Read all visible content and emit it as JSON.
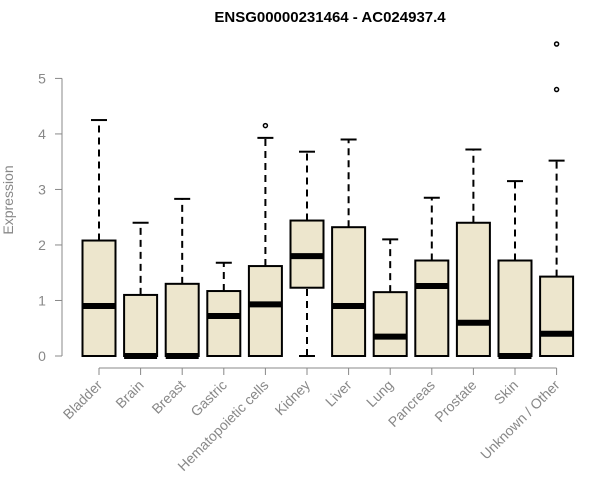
{
  "chart_data": {
    "type": "boxplot",
    "title": "ENSG00000231464 - AC024937.4",
    "xlabel": "",
    "ylabel": "Expression",
    "ylim": [
      0,
      5.8
    ],
    "yticks": [
      0,
      1,
      2,
      3,
      4,
      5
    ],
    "box_color": "#ede6cd",
    "axis_color": "#888888",
    "categories": [
      "Bladder",
      "Brain",
      "Breast",
      "Gastric",
      "Hematopoietic cells",
      "Kidney",
      "Liver",
      "Lung",
      "Pancreas",
      "Prostate",
      "Skin",
      "Unknown / Other"
    ],
    "boxes": [
      {
        "whisker_low": 0,
        "q1": 0,
        "median": 0.9,
        "q3": 2.08,
        "whisker_high": 4.25,
        "outliers": []
      },
      {
        "whisker_low": 0,
        "q1": 0,
        "median": 0,
        "q3": 1.1,
        "whisker_high": 2.4,
        "outliers": []
      },
      {
        "whisker_low": 0,
        "q1": 0,
        "median": 0,
        "q3": 1.3,
        "whisker_high": 2.83,
        "outliers": []
      },
      {
        "whisker_low": 0,
        "q1": 0,
        "median": 0.72,
        "q3": 1.17,
        "whisker_high": 1.68,
        "outliers": []
      },
      {
        "whisker_low": 0,
        "q1": 0,
        "median": 0.93,
        "q3": 1.62,
        "whisker_high": 3.93,
        "outliers": [
          4.15
        ]
      },
      {
        "whisker_low": 0,
        "q1": 1.23,
        "median": 1.8,
        "q3": 2.44,
        "whisker_high": 3.68,
        "outliers": []
      },
      {
        "whisker_low": 0,
        "q1": 0,
        "median": 0.9,
        "q3": 2.32,
        "whisker_high": 3.9,
        "outliers": []
      },
      {
        "whisker_low": 0,
        "q1": 0,
        "median": 0.35,
        "q3": 1.15,
        "whisker_high": 2.1,
        "outliers": []
      },
      {
        "whisker_low": 0,
        "q1": 0,
        "median": 1.26,
        "q3": 1.72,
        "whisker_high": 2.85,
        "outliers": []
      },
      {
        "whisker_low": 0,
        "q1": 0,
        "median": 0.6,
        "q3": 2.4,
        "whisker_high": 3.72,
        "outliers": []
      },
      {
        "whisker_low": 0,
        "q1": 0,
        "median": 0,
        "q3": 1.72,
        "whisker_high": 3.15,
        "outliers": []
      },
      {
        "whisker_low": 0,
        "q1": 0,
        "median": 0.4,
        "q3": 1.43,
        "whisker_high": 3.52,
        "outliers": [
          4.8,
          5.62
        ]
      }
    ]
  }
}
